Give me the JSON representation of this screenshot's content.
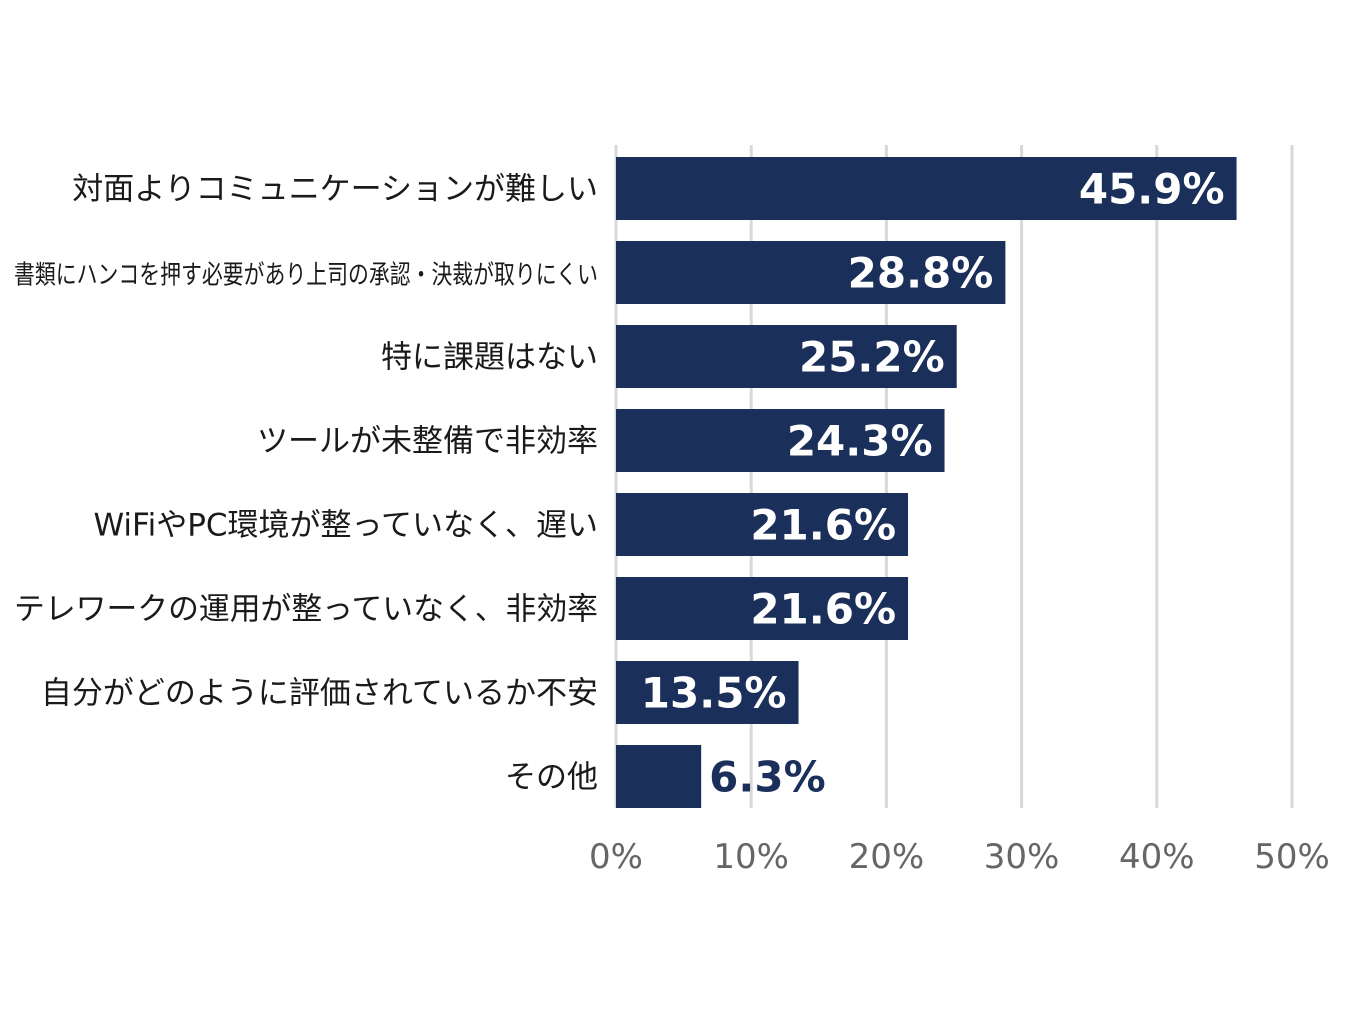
{
  "chart_data": {
    "type": "bar",
    "orientation": "horizontal",
    "categories": [
      "対面よりコミュニケーションが難しい",
      "書類にハンコを押す必要があり上司の承認・決裁が取りにくい",
      "特に課題はない",
      "ツールが未整備で非効率",
      "WiFiやPC環境が整っていなく、遅い",
      "テレワークの運用が整っていなく、非効率",
      "自分がどのように評価されているか不安",
      "その他"
    ],
    "values": [
      45.9,
      28.8,
      25.2,
      24.3,
      21.6,
      21.6,
      13.5,
      6.3
    ],
    "value_labels": [
      "45.9%",
      "28.8%",
      "25.2%",
      "24.3%",
      "21.6%",
      "21.6%",
      "13.5%",
      "6.3%"
    ],
    "xlim": [
      0,
      50
    ],
    "x_ticks": [
      0,
      10,
      20,
      30,
      40,
      50
    ],
    "x_tick_labels": [
      "0%",
      "10%",
      "20%",
      "30%",
      "40%",
      "50%"
    ],
    "grid": true,
    "colors": {
      "bar": "#1b2f5b",
      "value_inside": "#ffffff",
      "value_outside": "#1b2f5b",
      "grid": "#d9d9d9",
      "tick_text": "#666666",
      "category_text": "#1a1a1a"
    }
  }
}
